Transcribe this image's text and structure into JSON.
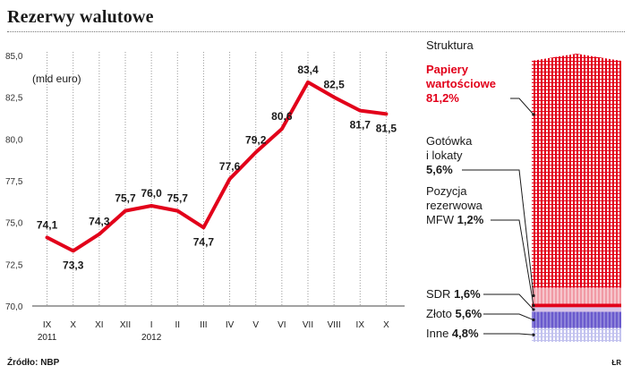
{
  "title": "Rezerwy walutowe",
  "source": "Źródło: NBP",
  "credit": "ŁR",
  "chart_data": [
    {
      "type": "line",
      "unit_label": "(mld euro)",
      "categories": [
        "IX",
        "X",
        "XI",
        "XII",
        "I",
        "II",
        "III",
        "IV",
        "V",
        "VI",
        "VII",
        "VIII",
        "IX",
        "X"
      ],
      "year_labels": [
        {
          "index": 0,
          "text": "2011"
        },
        {
          "index": 4,
          "text": "2012"
        }
      ],
      "values": [
        74.1,
        73.3,
        74.3,
        75.7,
        76.0,
        75.7,
        74.7,
        77.6,
        79.2,
        80.6,
        83.4,
        82.5,
        81.7,
        81.5
      ],
      "value_labels": [
        "74,1",
        "73,3",
        "74,3",
        "75,7",
        "76,0",
        "75,7",
        "74,7",
        "77,6",
        "79,2",
        "80,6",
        "83,4",
        "82,5",
        "81,7",
        "81,5"
      ],
      "yticks": [
        70.0,
        72.5,
        75.0,
        77.5,
        80.0,
        82.5,
        85.0
      ],
      "ytick_labels": [
        "70,0",
        "72,5",
        "75,0",
        "77,5",
        "80,0",
        "82,5",
        "85,0"
      ],
      "ylim": [
        70.0,
        85.0
      ],
      "line_color": "#e2001a",
      "grid": "vertical dotted"
    },
    {
      "type": "stacked_bar",
      "title": "Struktura",
      "segments": [
        {
          "name": "Papiery wartościowe",
          "label": "Papiery\nwartościowe",
          "value": 81.2,
          "value_label": "81,2%",
          "color": "#e2001a"
        },
        {
          "name": "Gotówka i lokaty",
          "label": "Gotówka\ni lokaty",
          "value": 5.6,
          "value_label": "5,6%",
          "color": "#f2a0a8"
        },
        {
          "name": "Pozycja rezerwowa MFW",
          "label": "Pozycja\nrezerwowa\nMFW",
          "value": 1.2,
          "value_label": "1,2%",
          "color": "#e2001a"
        },
        {
          "name": "SDR",
          "label": "SDR",
          "value": 1.6,
          "value_label": "1,6%",
          "color": "#d7c4e8"
        },
        {
          "name": "Złoto",
          "label": "Złoto",
          "value": 5.6,
          "value_label": "5,6%",
          "color": "#6a5acd"
        },
        {
          "name": "Inne",
          "label": "Inne",
          "value": 4.8,
          "value_label": "4,8%",
          "color": "#c8c8f0"
        }
      ]
    }
  ]
}
